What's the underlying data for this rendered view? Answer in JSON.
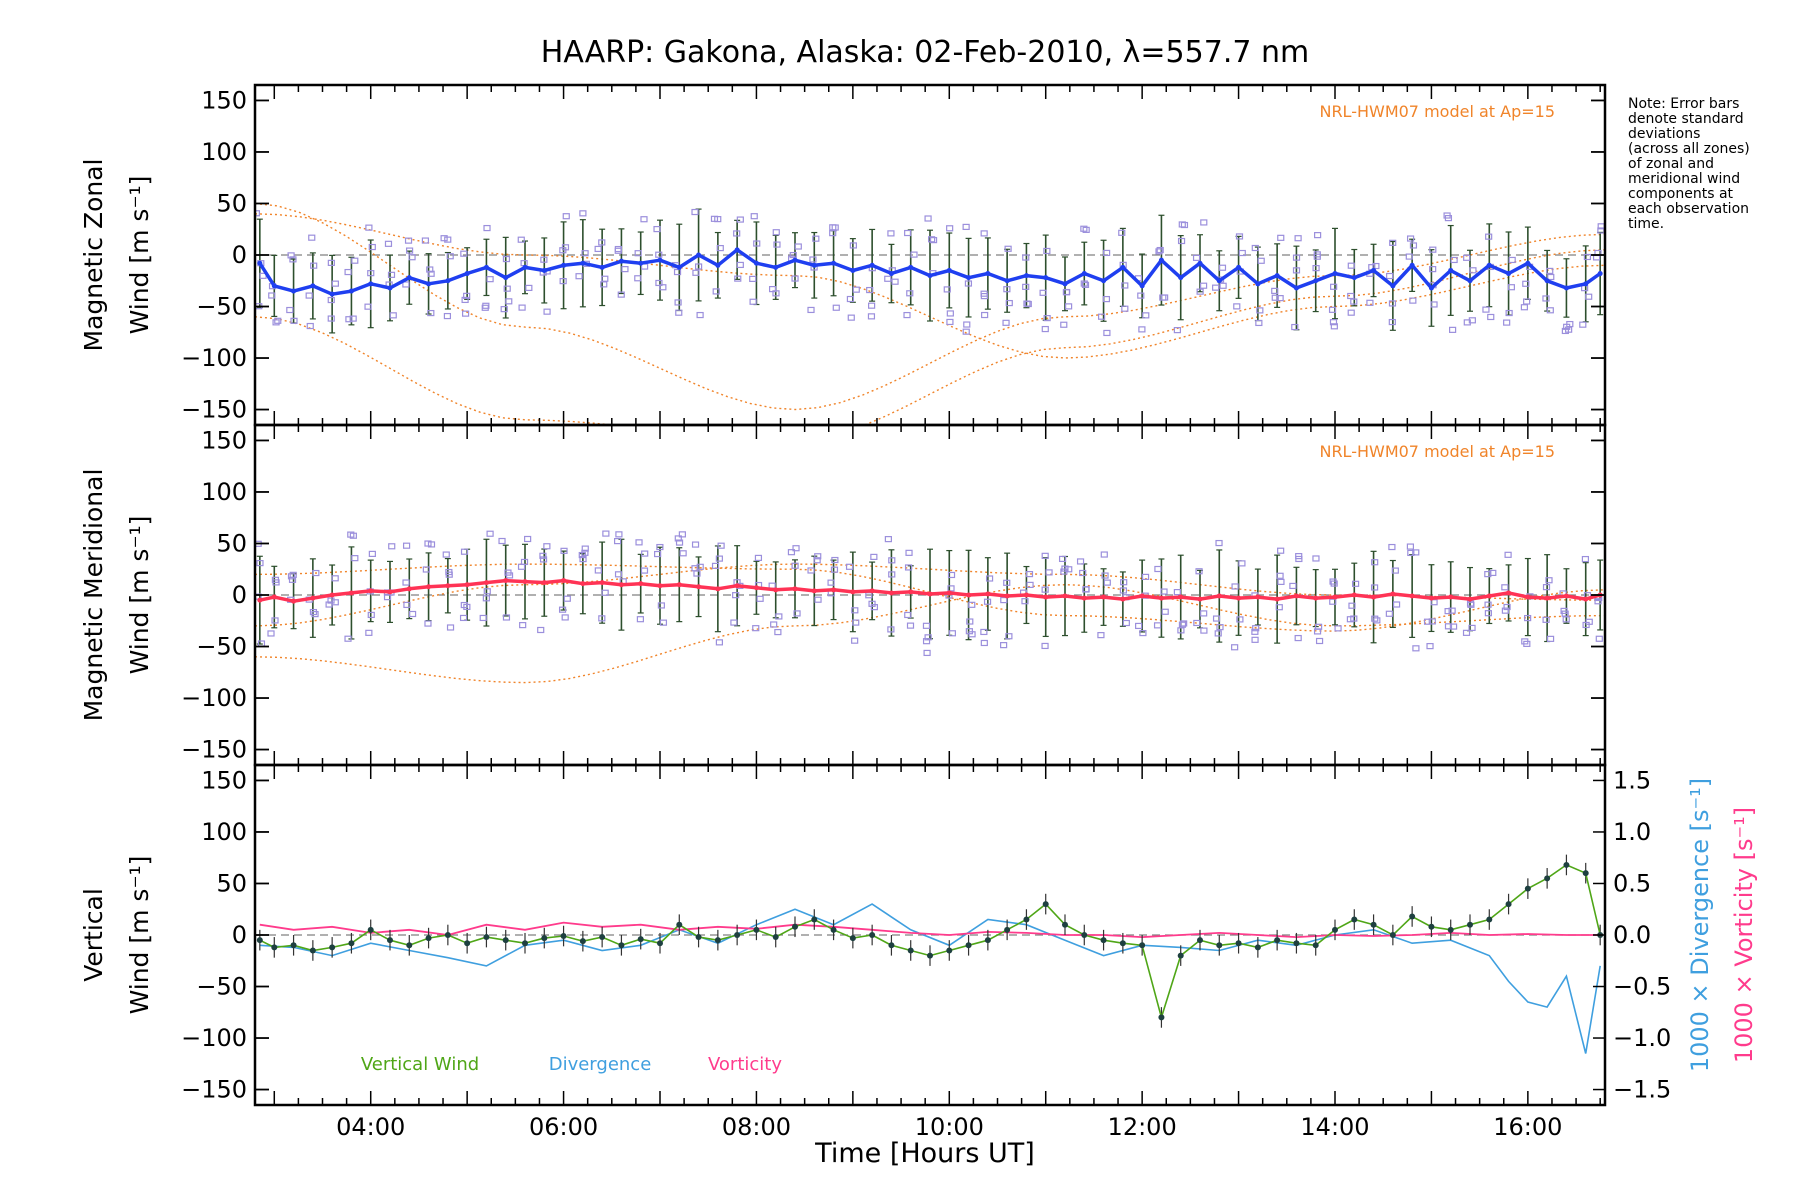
{
  "title": "HAARP: Gakona,  Alaska: 02-Feb-2010, λ=557.7 nm",
  "note": [
    "Note: Error bars",
    "denote standard",
    "deviations",
    "(across all zones)",
    "of zonal and",
    "meridional wind",
    "components at",
    "each observation",
    "time."
  ],
  "model_label": "NRL-HWM07 model at Ap=15",
  "colors": {
    "zonal": "#1f3ff0",
    "meridional": "#ff3355",
    "vertical": "#4fa617",
    "divergence": "#3f9fdf",
    "vorticity": "#ff3b8c",
    "model": "#f0842a",
    "scatter": "#9b8fdc",
    "axis": "#000000",
    "zero_line": "#808080"
  },
  "chart_data": [
    {
      "type": "line",
      "panel": "zonal",
      "ylabel": [
        "Magnetic Zonal",
        "Wind [m s⁻¹]"
      ],
      "ylim": [
        -165,
        165
      ],
      "yticks": [
        150,
        100,
        50,
        0,
        -50,
        -100,
        -150
      ],
      "model_label": "NRL-HWM07 model at Ap=15",
      "series": [
        {
          "x": [
            2.85,
            3.0,
            3.2,
            3.4,
            3.6,
            3.8,
            4.0,
            4.2,
            4.4,
            4.6,
            4.8,
            5.0,
            5.2,
            5.4,
            5.6,
            5.8,
            6.0,
            6.2,
            6.4,
            6.6,
            6.8,
            7.0,
            7.2,
            7.4,
            7.6,
            7.8,
            8.0,
            8.2,
            8.4,
            8.6,
            8.8,
            9.0,
            9.2,
            9.4,
            9.6,
            9.8,
            10.0,
            10.2,
            10.4,
            10.6,
            10.8,
            11.0,
            11.2,
            11.4,
            11.6,
            11.8,
            12.0,
            12.2,
            12.4,
            12.6,
            12.8,
            13.0,
            13.2,
            13.4,
            13.6,
            13.8,
            14.0,
            14.2,
            14.4,
            14.6,
            14.8,
            15.0,
            15.2,
            15.4,
            15.6,
            15.8,
            16.0,
            16.2,
            16.4,
            16.6,
            16.75
          ],
          "values": [
            -8,
            -30,
            -35,
            -30,
            -38,
            -35,
            -28,
            -32,
            -22,
            -28,
            -25,
            -18,
            -12,
            -22,
            -12,
            -15,
            -10,
            -8,
            -12,
            -6,
            -8,
            -5,
            -12,
            0,
            -10,
            5,
            -8,
            -12,
            -5,
            -10,
            -8,
            -15,
            -10,
            -18,
            -12,
            -20,
            -15,
            -22,
            -18,
            -25,
            -20,
            -22,
            -28,
            -18,
            -25,
            -12,
            -30,
            -5,
            -22,
            -8,
            -25,
            -12,
            -28,
            -20,
            -32,
            -25,
            -18,
            -22,
            -15,
            -30,
            -10,
            -32,
            -15,
            -25,
            -10,
            -18,
            -8,
            -25,
            -32,
            -28,
            -18
          ]
        }
      ]
    },
    {
      "type": "line",
      "panel": "meridional",
      "ylabel": [
        "Magnetic Meridional",
        "Wind [m s⁻¹]"
      ],
      "ylim": [
        -165,
        165
      ],
      "yticks": [
        150,
        100,
        50,
        0,
        -50,
        -100,
        -150
      ],
      "model_label": "NRL-HWM07 model at Ap=15",
      "series": [
        {
          "x": [
            2.85,
            3.0,
            3.2,
            3.4,
            3.6,
            3.8,
            4.0,
            4.2,
            4.4,
            4.6,
            4.8,
            5.0,
            5.2,
            5.4,
            5.6,
            5.8,
            6.0,
            6.2,
            6.4,
            6.6,
            6.8,
            7.0,
            7.2,
            7.4,
            7.6,
            7.8,
            8.0,
            8.2,
            8.4,
            8.6,
            8.8,
            9.0,
            9.2,
            9.4,
            9.6,
            9.8,
            10.0,
            10.2,
            10.4,
            10.6,
            10.8,
            11.0,
            11.2,
            11.4,
            11.6,
            11.8,
            12.0,
            12.2,
            12.4,
            12.6,
            12.8,
            13.0,
            13.2,
            13.4,
            13.6,
            13.8,
            14.0,
            14.2,
            14.4,
            14.6,
            14.8,
            15.0,
            15.2,
            15.4,
            15.6,
            15.8,
            16.0,
            16.2,
            16.4,
            16.6,
            16.75
          ],
          "values": [
            -5,
            -2,
            -6,
            -3,
            0,
            2,
            4,
            3,
            6,
            8,
            9,
            10,
            12,
            14,
            13,
            12,
            14,
            11,
            12,
            10,
            11,
            9,
            10,
            8,
            6,
            9,
            7,
            5,
            6,
            4,
            5,
            3,
            4,
            2,
            3,
            1,
            2,
            0,
            1,
            -1,
            0,
            -2,
            -1,
            -3,
            -2,
            -4,
            -1,
            -3,
            -2,
            -4,
            -1,
            -3,
            -2,
            -4,
            -1,
            -3,
            -2,
            0,
            -2,
            1,
            -1,
            -3,
            -2,
            -4,
            -1,
            2,
            -2,
            -3,
            -1,
            -4,
            0
          ]
        }
      ]
    },
    {
      "type": "line",
      "panel": "vertical",
      "ylabel": [
        "Vertical",
        "Wind [m s⁻¹]"
      ],
      "ylim": [
        -165,
        165
      ],
      "yticks": [
        150,
        100,
        50,
        0,
        -50,
        -100,
        -150
      ],
      "y2label_divergence": "1000 × Divergence [s⁻¹]",
      "y2label_vorticity": "1000 × Vorticity [s⁻¹]",
      "y2lim": [
        -1.65,
        1.65
      ],
      "y2ticks": [
        1.5,
        1.0,
        0.5,
        0.0,
        -0.5,
        -1.0,
        -1.5
      ],
      "y2ticklabels": [
        "1.5",
        "1.0",
        "0.5",
        "0.0",
        "−0.5",
        "−1.0",
        "−1.5"
      ],
      "legend": [
        "Vertical Wind",
        "Divergence",
        "Vorticity"
      ],
      "series": [
        {
          "name": "Vertical Wind",
          "x": [
            2.85,
            3.0,
            3.2,
            3.4,
            3.6,
            3.8,
            4.0,
            4.2,
            4.4,
            4.6,
            4.8,
            5.0,
            5.2,
            5.4,
            5.6,
            5.8,
            6.0,
            6.2,
            6.4,
            6.6,
            6.8,
            7.0,
            7.2,
            7.4,
            7.6,
            7.8,
            8.0,
            8.2,
            8.4,
            8.6,
            8.8,
            9.0,
            9.2,
            9.4,
            9.6,
            9.8,
            10.0,
            10.2,
            10.4,
            10.6,
            10.8,
            11.0,
            11.2,
            11.4,
            11.6,
            11.8,
            12.0,
            12.2,
            12.4,
            12.6,
            12.8,
            13.0,
            13.2,
            13.4,
            13.6,
            13.8,
            14.0,
            14.2,
            14.4,
            14.6,
            14.8,
            15.0,
            15.2,
            15.4,
            15.6,
            15.8,
            16.0,
            16.2,
            16.4,
            16.6,
            16.75
          ],
          "values": [
            -5,
            -12,
            -10,
            -15,
            -12,
            -8,
            5,
            -5,
            -10,
            -3,
            0,
            -8,
            -2,
            -5,
            -8,
            -3,
            -1,
            -6,
            -2,
            -10,
            -4,
            -8,
            10,
            -2,
            -5,
            0,
            5,
            -2,
            8,
            15,
            5,
            -3,
            0,
            -10,
            -15,
            -20,
            -15,
            -10,
            -5,
            5,
            15,
            30,
            10,
            0,
            -5,
            -8,
            -10,
            -80,
            -20,
            -5,
            -10,
            -8,
            -12,
            -5,
            -8,
            -10,
            5,
            15,
            10,
            0,
            18,
            8,
            5,
            10,
            15,
            30,
            45,
            55,
            68,
            60,
            0
          ]
        },
        {
          "name": "Divergence",
          "x": [
            2.85,
            3.2,
            3.6,
            4.0,
            4.4,
            4.8,
            5.2,
            5.6,
            6.0,
            6.4,
            6.8,
            7.2,
            7.6,
            8.0,
            8.4,
            8.8,
            9.2,
            9.6,
            10.0,
            10.4,
            10.8,
            11.2,
            11.6,
            12.0,
            12.4,
            12.8,
            13.2,
            13.6,
            14.0,
            14.4,
            14.8,
            15.2,
            15.6,
            15.8,
            16.0,
            16.2,
            16.4,
            16.6,
            16.75
          ],
          "values": [
            -0.1,
            -0.12,
            -0.2,
            -0.08,
            -0.15,
            -0.22,
            -0.3,
            -0.1,
            -0.05,
            -0.15,
            -0.1,
            0.05,
            -0.08,
            0.1,
            0.25,
            0.1,
            0.3,
            0.05,
            -0.1,
            0.15,
            0.1,
            -0.05,
            -0.2,
            -0.1,
            -0.12,
            -0.15,
            -0.05,
            -0.1,
            0.0,
            0.05,
            -0.08,
            -0.05,
            -0.2,
            -0.45,
            -0.65,
            -0.7,
            -0.4,
            -1.15,
            -0.3
          ]
        },
        {
          "name": "Vorticity",
          "x": [
            2.85,
            3.2,
            3.6,
            4.0,
            4.4,
            4.8,
            5.2,
            5.6,
            6.0,
            6.4,
            6.8,
            7.2,
            7.6,
            8.0,
            8.4,
            8.8,
            9.2,
            9.6,
            10.0,
            10.4,
            10.8,
            11.2,
            11.6,
            12.0,
            12.4,
            12.8,
            13.2,
            13.6,
            14.0,
            14.4,
            14.8,
            15.2,
            15.6,
            16.0,
            16.4,
            16.75
          ],
          "values": [
            0.1,
            0.05,
            0.08,
            0.02,
            0.05,
            0.0,
            0.1,
            0.05,
            0.12,
            0.08,
            0.1,
            0.05,
            0.08,
            0.06,
            0.1,
            0.08,
            0.05,
            0.02,
            0.0,
            0.03,
            0.02,
            0.0,
            0.0,
            -0.02,
            0.0,
            0.02,
            0.0,
            -0.02,
            0.0,
            -0.01,
            0.0,
            0.02,
            0.0,
            0.01,
            0.0,
            0.0
          ]
        }
      ]
    }
  ],
  "x_axis": {
    "label": "Time [Hours UT]",
    "xlim": [
      2.8,
      16.8
    ],
    "ticks": [
      4,
      6,
      8,
      10,
      12,
      14,
      16
    ],
    "ticklabels": [
      "04:00",
      "06:00",
      "08:00",
      "10:00",
      "12:00",
      "14:00",
      "16:00"
    ]
  }
}
